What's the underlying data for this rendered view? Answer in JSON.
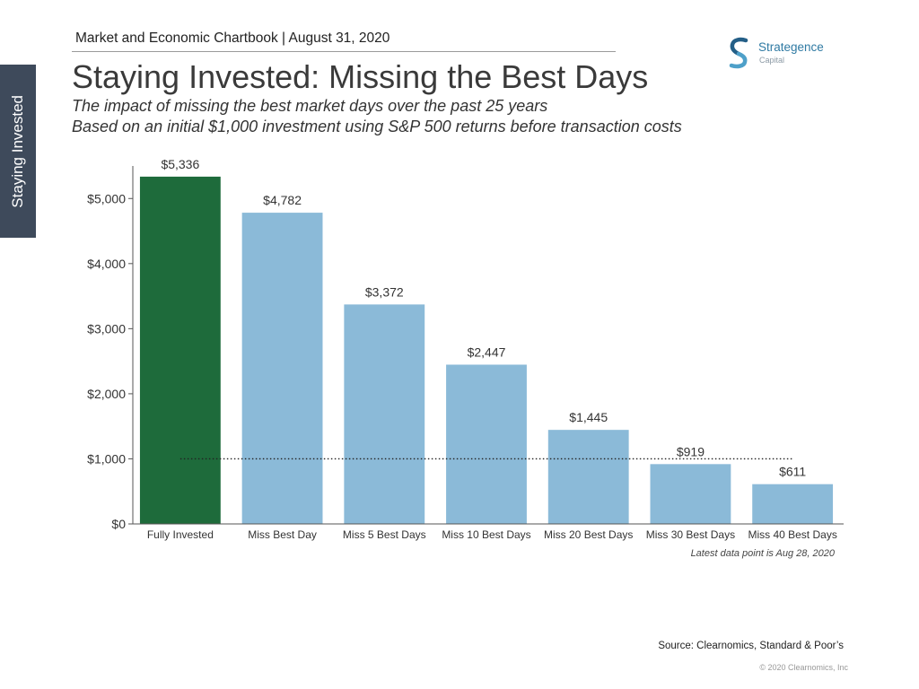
{
  "header": {
    "chartbook_line": "Market and Economic Chartbook | August 31, 2020"
  },
  "brand": {
    "name": "Strategence",
    "tagline": "Capital",
    "icon": "strategence-s-logo-icon",
    "colors": {
      "text": "#2f7aa3",
      "icon_dark": "#245f87",
      "icon_light": "#4ea0c9",
      "tagline": "#8c9aa5"
    }
  },
  "section_tab": {
    "label": "Staying Invested",
    "color": "#3e4a5b"
  },
  "chart_data": {
    "type": "bar",
    "title": "Staying Invested: Missing the Best Days",
    "subtitle": [
      "The impact of missing the best market days over the past 25 years",
      "Based on an initial $1,000 investment using S&P 500 returns before transaction costs"
    ],
    "categories": [
      "Fully Invested",
      "Miss Best Day",
      "Miss 5 Best Days",
      "Miss 10 Best Days",
      "Miss 20 Best Days",
      "Miss 30 Best Days",
      "Miss 40 Best Days"
    ],
    "values": [
      5336,
      4782,
      3372,
      2447,
      1445,
      919,
      611
    ],
    "data_labels": [
      "$5,336",
      "$4,782",
      "$3,372",
      "$2,447",
      "$1,445",
      "$919",
      "$611"
    ],
    "bar_colors": [
      "#1e6b3b",
      "#8bbad8",
      "#8bbad8",
      "#8bbad8",
      "#8bbad8",
      "#8bbad8",
      "#8bbad8"
    ],
    "yticks": [
      0,
      1000,
      2000,
      3000,
      4000,
      5000
    ],
    "ytick_labels": [
      "$0",
      "$1,000",
      "$2,000",
      "$3,000",
      "$4,000",
      "$5,000"
    ],
    "ylim": [
      0,
      5500
    ],
    "reference_line": {
      "y": 1000
    },
    "grid": false,
    "note": "Latest data point is Aug 28, 2020"
  },
  "footer": {
    "source": "Source: Clearnomics, Standard & Poor’s",
    "copyright": "© 2020 Clearnomics, Inc"
  }
}
